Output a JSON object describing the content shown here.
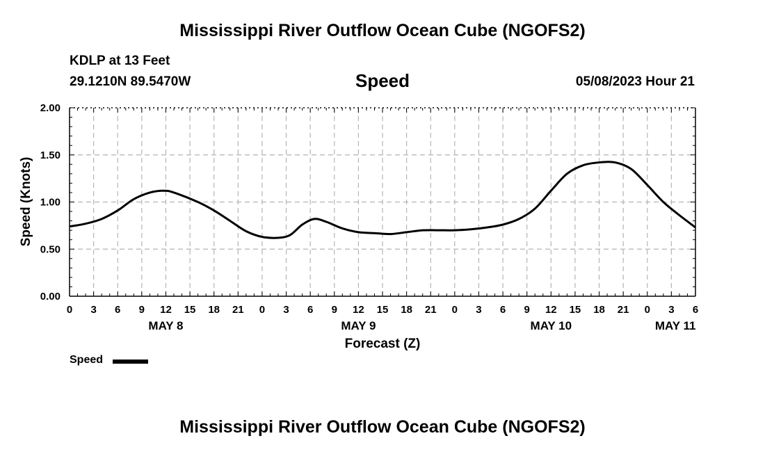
{
  "page_title": "Mississippi River Outflow Ocean Cube (NGOFS2)",
  "station": {
    "name": "KDLP at 13 Feet",
    "coords": "29.1210N  89.5470W",
    "variable": "Speed",
    "datetime": "05/08/2023 Hour 21"
  },
  "footer_title": "Mississippi River Outflow Ocean Cube (NGOFS2)",
  "chart_data": {
    "type": "line",
    "title": "Speed",
    "xlabel": "Forecast (Z)",
    "ylabel": "Speed (Knots)",
    "ylim": [
      0,
      2
    ],
    "xlim": [
      0,
      78
    ],
    "y_ticks": [
      "0.00",
      "0.50",
      "1.00",
      "1.50",
      "2.00"
    ],
    "y_tick_values": [
      0,
      0.5,
      1,
      1.5,
      2
    ],
    "x_tick_hours": [
      0,
      3,
      6,
      9,
      12,
      15,
      18,
      21,
      24,
      27,
      30,
      33,
      36,
      39,
      42,
      45,
      48,
      51,
      54,
      57,
      60,
      63,
      66,
      69,
      72,
      75,
      78
    ],
    "x_tick_labels": [
      "0",
      "3",
      "6",
      "9",
      "12",
      "15",
      "18",
      "21",
      "0",
      "3",
      "6",
      "9",
      "12",
      "15",
      "18",
      "21",
      "0",
      "3",
      "6",
      "9",
      "12",
      "15",
      "18",
      "21",
      "0",
      "3",
      "6"
    ],
    "day_labels": [
      {
        "label": "MAY 8",
        "hour": 12
      },
      {
        "label": "MAY 9",
        "hour": 36
      },
      {
        "label": "MAY 10",
        "hour": 60
      },
      {
        "label": "MAY 11",
        "hour": 75.5
      }
    ],
    "grid": true,
    "series": [
      {
        "name": "Speed",
        "color": "#000000",
        "x": [
          0,
          2,
          4,
          6,
          8,
          10,
          11.7,
          13,
          16,
          18,
          20,
          22,
          24,
          26,
          27.5,
          29,
          30.5,
          32,
          34,
          36,
          38,
          40,
          42,
          44,
          46,
          48,
          50,
          52,
          54,
          56,
          58,
          60,
          62,
          64,
          66,
          68,
          70,
          72,
          74,
          76,
          78
        ],
        "y": [
          0.74,
          0.77,
          0.82,
          0.91,
          1.03,
          1.1,
          1.12,
          1.1,
          1.0,
          0.91,
          0.8,
          0.69,
          0.63,
          0.62,
          0.65,
          0.76,
          0.82,
          0.79,
          0.72,
          0.68,
          0.67,
          0.66,
          0.68,
          0.7,
          0.7,
          0.7,
          0.71,
          0.73,
          0.76,
          0.82,
          0.93,
          1.12,
          1.3,
          1.39,
          1.42,
          1.42,
          1.35,
          1.18,
          1.0,
          0.86,
          0.73
        ]
      }
    ],
    "legend": {
      "label": "Speed",
      "placement": "bottom-left"
    }
  }
}
